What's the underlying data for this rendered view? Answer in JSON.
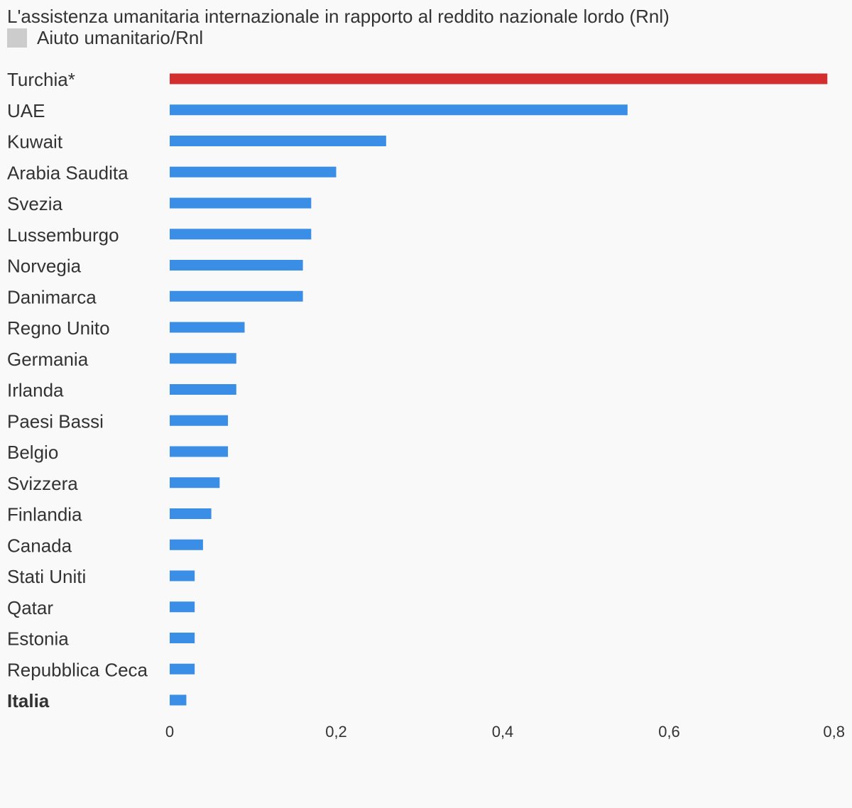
{
  "chart_data": {
    "type": "bar",
    "orientation": "horizontal",
    "title": "L'assistenza umanitaria internazionale in rapporto al reddito nazionale lordo (Rnl)",
    "legend": {
      "placement": "top-left",
      "entries": [
        {
          "name": "Aiuto umanitario/Rnl",
          "color": "#cccccc"
        }
      ]
    },
    "categories": [
      "Turchia*",
      "UAE",
      "Kuwait",
      "Arabia Saudita",
      "Svezia",
      "Lussemburgo",
      "Norvegia",
      "Danimarca",
      "Regno Unito",
      "Germania",
      "Irlanda",
      "Paesi Bassi",
      "Belgio",
      "Svizzera",
      "Finlandia",
      "Canada",
      "Stati Uniti",
      "Qatar",
      "Estonia",
      "Repubblica Ceca",
      "Italia"
    ],
    "values": [
      0.79,
      0.55,
      0.26,
      0.2,
      0.17,
      0.17,
      0.16,
      0.16,
      0.09,
      0.08,
      0.08,
      0.07,
      0.07,
      0.06,
      0.05,
      0.04,
      0.03,
      0.03,
      0.03,
      0.03,
      0.02
    ],
    "highlight": {
      "Turchia*": {
        "bar_color": "#d32f2f",
        "label_color": "#c62828"
      },
      "Italia": {
        "label_bold": true
      }
    },
    "bar_color": "#3a8ee6",
    "xlim": [
      0,
      0.8
    ],
    "xticks": [
      0,
      0.2,
      0.4,
      0.6,
      0.8
    ],
    "xtick_labels": [
      "0",
      "0,2",
      "0,4",
      "0,6",
      "0,8"
    ],
    "xlabel": "",
    "ylabel": "",
    "grid": false
  }
}
